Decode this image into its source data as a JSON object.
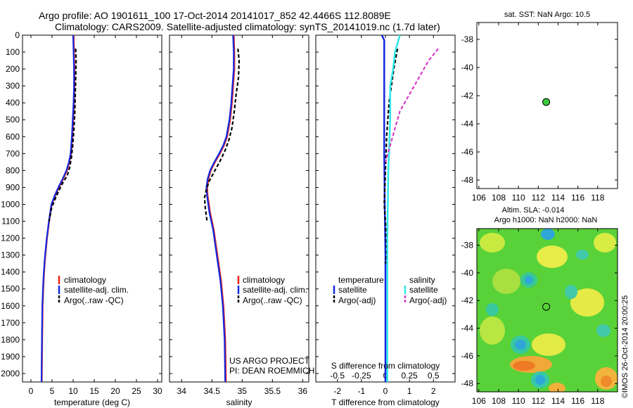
{
  "header": {
    "title_line1": "Argo profile: AO 1901611_100 17-Oct-2014 20141017_852 42.4466S 112.8089E",
    "title_line2": "Climatology: CARS2009. Satellite-adjusted climatology: synTS_20141019.nc (1.7d later)"
  },
  "colors": {
    "climatology": "#e8231b",
    "satellite": "#1428e0",
    "argo": "#000000",
    "sal_satellite": "#2fe8e8",
    "sal_argo": "#d83cc8",
    "dot": "#3cc83c"
  },
  "chart_data": [
    {
      "id": "temperature",
      "type": "line",
      "xlabel": "temperature (deg C)",
      "ylabel": "",
      "xlim": [
        -2,
        31
      ],
      "ylim": [
        2050,
        0
      ],
      "xticks": [
        "0",
        "5",
        "10",
        "15",
        "20",
        "25",
        "30"
      ],
      "yticks": [
        "0",
        "100",
        "200",
        "300",
        "400",
        "500",
        "600",
        "700",
        "800",
        "900",
        "1000",
        "1100",
        "1200",
        "1300",
        "1400",
        "1500",
        "1600",
        "1700",
        "1800",
        "1900",
        "2000"
      ],
      "legend": [
        "climatology",
        "satellite-adj. clim.",
        "Argo(..raw -QC)"
      ],
      "series": [
        {
          "name": "climatology",
          "x": [
            10.1,
            10.2,
            10.3,
            10.3,
            10.2,
            10.0,
            9.8,
            9.5,
            9.1,
            8.5,
            7.6,
            6.6,
            5.7,
            4.9,
            4.3,
            3.8,
            3.4,
            3.1,
            2.9,
            2.75,
            2.65,
            2.55
          ],
          "y": [
            0,
            100,
            200,
            300,
            400,
            500,
            600,
            700,
            750,
            800,
            850,
            900,
            950,
            1000,
            1100,
            1200,
            1300,
            1400,
            1500,
            1600,
            1800,
            2050
          ]
        },
        {
          "name": "satellite-adj. clim.",
          "x": [
            10.0,
            10.1,
            10.2,
            10.2,
            10.1,
            9.9,
            9.7,
            9.4,
            9.0,
            8.4,
            7.5,
            6.5,
            5.6,
            4.85,
            4.25,
            3.75,
            3.35,
            3.05,
            2.85,
            2.7,
            2.6,
            2.5
          ],
          "y": [
            0,
            100,
            200,
            300,
            400,
            500,
            600,
            700,
            750,
            800,
            850,
            900,
            950,
            1000,
            1100,
            1200,
            1300,
            1400,
            1500,
            1600,
            1800,
            2050
          ]
        },
        {
          "name": "Argo(..raw -QC)",
          "x": [
            10.6,
            10.7,
            10.6,
            10.5,
            10.4,
            10.2,
            9.9,
            9.6,
            9.2,
            8.6,
            7.6,
            6.6,
            5.7,
            4.9,
            4.3
          ],
          "y": [
            80,
            150,
            250,
            350,
            450,
            550,
            650,
            720,
            780,
            830,
            870,
            920,
            970,
            1020,
            1100
          ]
        }
      ]
    },
    {
      "id": "salinity",
      "type": "line",
      "xlabel": "salinity",
      "ylabel": "",
      "xlim": [
        33.8,
        36.1
      ],
      "ylim": [
        2050,
        0
      ],
      "xticks": [
        "34",
        "34.5",
        "35",
        "35.5",
        "36"
      ],
      "legend": [
        "climatology",
        "satellite-adj. clim.",
        "Argo(..raw -QC)"
      ],
      "annotation": [
        "US ARGO PROJECT",
        "PI: DEAN ROEMMICH"
      ],
      "series": [
        {
          "name": "climatology",
          "x": [
            34.86,
            34.87,
            34.87,
            34.85,
            34.83,
            34.8,
            34.75,
            34.7,
            34.63,
            34.55,
            34.48,
            34.44,
            34.42,
            34.43,
            34.47,
            34.53,
            34.59,
            34.65,
            34.69,
            34.72,
            34.73
          ],
          "y": [
            0,
            100,
            200,
            300,
            400,
            500,
            600,
            650,
            700,
            750,
            800,
            850,
            900,
            950,
            1050,
            1150,
            1300,
            1450,
            1600,
            1800,
            2050
          ]
        },
        {
          "name": "satellite-adj. clim.",
          "x": [
            34.85,
            34.86,
            34.86,
            34.84,
            34.82,
            34.79,
            34.74,
            34.69,
            34.62,
            34.54,
            34.47,
            34.43,
            34.41,
            34.42,
            34.46,
            34.52,
            34.58,
            34.64,
            34.68,
            34.71,
            34.72
          ],
          "y": [
            0,
            100,
            200,
            300,
            400,
            500,
            600,
            650,
            700,
            750,
            800,
            850,
            900,
            950,
            1050,
            1150,
            1300,
            1450,
            1600,
            1800,
            2050
          ]
        },
        {
          "name": "Argo(..raw -QC)",
          "x": [
            34.93,
            34.95,
            34.94,
            34.9,
            34.87,
            34.83,
            34.78,
            34.72,
            34.64,
            34.55,
            34.46,
            34.41,
            34.38,
            34.39,
            34.42
          ],
          "y": [
            80,
            150,
            250,
            350,
            450,
            550,
            620,
            680,
            740,
            800,
            860,
            910,
            960,
            1020,
            1100
          ]
        }
      ]
    },
    {
      "id": "difference",
      "type": "line",
      "xlabel": "T difference from climatology",
      "ylabel": "",
      "xlim": [
        -2.9,
        2.9
      ],
      "ylim": [
        2050,
        0
      ],
      "xticks": [
        "-2",
        "-1",
        "0",
        "1",
        "2"
      ],
      "top_label": "S difference from climatology",
      "top_ticks": [
        "-0.5",
        "-0.25",
        "0",
        "0.25",
        "0.5"
      ],
      "legend_temperature": {
        "title": "temperature",
        "items": [
          "satellite",
          "Argo(-adj)"
        ]
      },
      "legend_salinity": {
        "title": "salinity",
        "items": [
          "satellite",
          "Argo(-adj)"
        ]
      },
      "series": [
        {
          "name": "temperature satellite",
          "x": [
            -0.15,
            -0.05,
            -0.05,
            -0.05,
            -0.05,
            -0.05,
            -0.05,
            -0.03,
            0.0,
            0.0,
            0.0,
            0.0
          ],
          "y": [
            0,
            30,
            60,
            150,
            300,
            450,
            700,
            1000,
            1300,
            1600,
            1900,
            2050
          ]
        },
        {
          "name": "temperature Argo(-adj)",
          "x": [
            0.5,
            0.45,
            0.35,
            0.25,
            0.15,
            0.1,
            0.05,
            0.0,
            -0.05,
            0.0,
            0.05,
            0.0
          ],
          "y": [
            80,
            120,
            200,
            300,
            400,
            500,
            600,
            800,
            1000,
            1100,
            1300,
            1350
          ]
        },
        {
          "name": "salinity satellite",
          "x": [
            0.15,
            0.1,
            0.08,
            0.05,
            0.05,
            0.03,
            0.02,
            0.02,
            0.02
          ],
          "y": [
            0,
            100,
            200,
            300,
            500,
            800,
            1200,
            1600,
            2050
          ]
        },
        {
          "name": "salinity Argo(-adj)",
          "x": [
            0.55,
            0.45,
            0.35,
            0.25,
            0.15,
            0.1,
            0.05,
            0.0
          ],
          "y": [
            80,
            150,
            250,
            350,
            450,
            550,
            650,
            750
          ]
        }
      ]
    },
    {
      "id": "sst_map",
      "type": "scatter",
      "title": "sat. SST: NaN Argo: 10.5",
      "xlim": [
        105.8,
        120
      ],
      "ylim": [
        -48.6,
        -36.8
      ],
      "xticks": [
        "106",
        "108",
        "110",
        "112",
        "114",
        "116",
        "118"
      ],
      "yticks": [
        "-38",
        "-40",
        "-42",
        "-44",
        "-46",
        "-48"
      ],
      "points": [
        {
          "x": 112.8,
          "y": -42.45
        }
      ]
    },
    {
      "id": "sla_map",
      "type": "heatmap",
      "title_line1": "Altim. SLA: -0.014",
      "title_line2": "Argo h1000: NaN h2000: NaN",
      "xlim": [
        105.8,
        120
      ],
      "ylim": [
        -48.6,
        -36.8
      ],
      "xticks": [
        "106",
        "108",
        "110",
        "112",
        "114",
        "116",
        "118"
      ],
      "yticks": [
        "-38",
        "-40",
        "-42",
        "-44",
        "-46",
        "-48"
      ],
      "points": [
        {
          "x": 112.8,
          "y": -42.45
        }
      ],
      "side_label": "©IMOS 26-Oct-2014 20:00:25"
    }
  ]
}
